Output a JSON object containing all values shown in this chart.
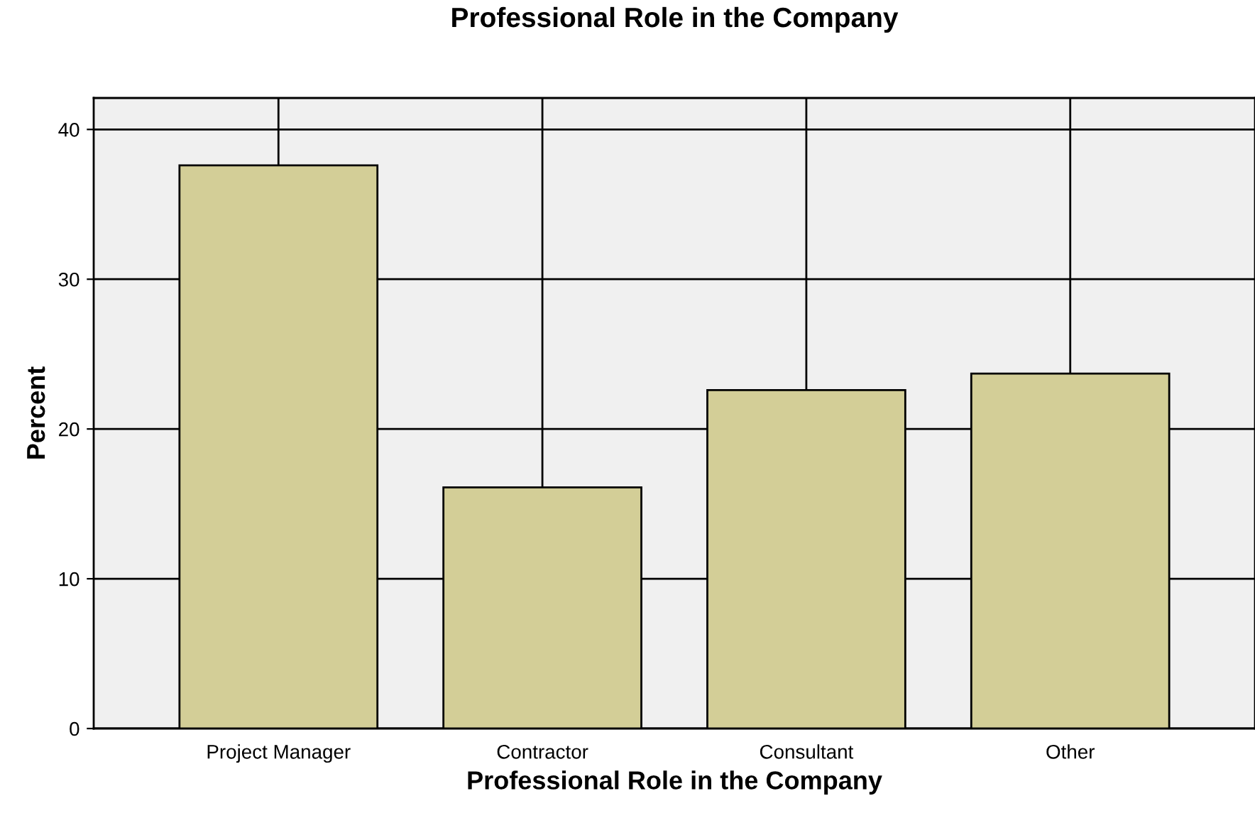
{
  "chart_data": {
    "type": "bar",
    "title": "Professional Role in the Company",
    "xlabel": "Professional Role in the Company",
    "ylabel": "Percent",
    "categories": [
      "Project Manager",
      "Contractor",
      "Consultant",
      "Other"
    ],
    "values": [
      37.6,
      16.1,
      22.6,
      23.7
    ],
    "color": "#d3ce97",
    "ylim": [
      0,
      42.1
    ],
    "yticks": [
      0,
      10,
      20,
      30,
      40
    ],
    "grid": true
  }
}
